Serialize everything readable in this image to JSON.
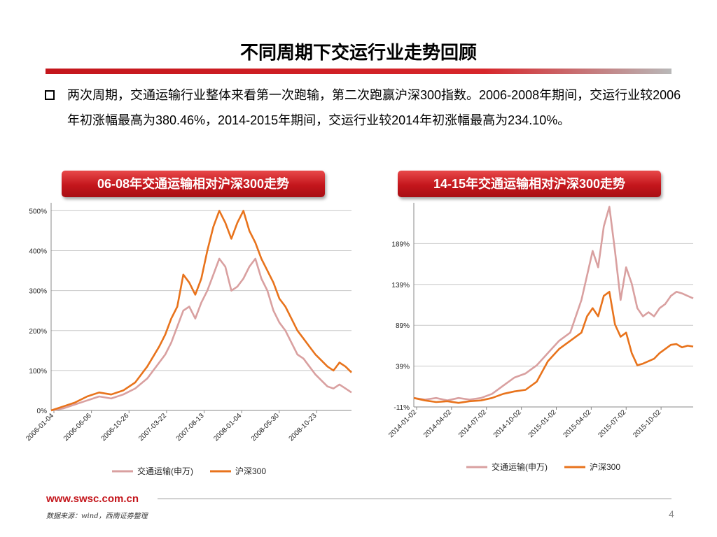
{
  "page": {
    "title": "不同周期下交运行业走势回顾",
    "description": "两次周期，交通运输行业整体来看第一次跑输，第二次跑赢沪深300指数。2006-2008年期间，交运行业较2006年初涨幅最高为380.46%，2014-2015年期间，交运行业较2014年初涨幅最高为234.10%。",
    "footer_site": "www.swsc.com.cn",
    "footer_source": "数据来源：wind，西南证券整理",
    "page_number": "4"
  },
  "colors": {
    "accent_red": "#c4161c",
    "series_transport": "#d9a0a0",
    "series_hs300": "#e8731c"
  },
  "chart_data": [
    {
      "type": "line",
      "title": "06-08年交通运输相对沪深300走势",
      "y_ticks": [
        "0%",
        "100%",
        "200%",
        "300%",
        "400%",
        "500%"
      ],
      "y_values": [
        0,
        100,
        200,
        300,
        400,
        500
      ],
      "ylim": [
        0,
        520
      ],
      "x_tick_labels": [
        "2006-01-04",
        "2006-06-06",
        "2006-10-26",
        "2007-03-22",
        "2007-08-13",
        "2008-01-04",
        "2008-05-30",
        "2008-10-23"
      ],
      "grid": true,
      "legend_position": "bottom",
      "series": [
        {
          "name": "交通运输(申万)",
          "color": "#d9a0a0",
          "x": [
            0,
            0.04,
            0.08,
            0.12,
            0.16,
            0.2,
            0.24,
            0.28,
            0.32,
            0.36,
            0.38,
            0.4,
            0.42,
            0.44,
            0.46,
            0.48,
            0.5,
            0.52,
            0.54,
            0.56,
            0.58,
            0.6,
            0.62,
            0.64,
            0.66,
            0.68,
            0.7,
            0.72,
            0.74,
            0.76,
            0.78,
            0.8,
            0.82,
            0.84,
            0.86,
            0.88,
            0.9,
            0.92,
            0.94,
            0.96,
            0.98,
            1
          ],
          "y": [
            0,
            5,
            15,
            25,
            35,
            30,
            40,
            55,
            80,
            120,
            140,
            170,
            210,
            250,
            260,
            230,
            270,
            300,
            340,
            380,
            360,
            300,
            310,
            330,
            360,
            380,
            330,
            300,
            250,
            220,
            200,
            170,
            140,
            130,
            110,
            90,
            75,
            60,
            55,
            65,
            55,
            45
          ]
        },
        {
          "name": "沪深300",
          "color": "#e8731c",
          "x": [
            0,
            0.04,
            0.08,
            0.12,
            0.16,
            0.2,
            0.24,
            0.28,
            0.32,
            0.36,
            0.38,
            0.4,
            0.42,
            0.44,
            0.46,
            0.48,
            0.5,
            0.52,
            0.54,
            0.56,
            0.58,
            0.6,
            0.62,
            0.64,
            0.66,
            0.68,
            0.7,
            0.72,
            0.74,
            0.76,
            0.78,
            0.8,
            0.82,
            0.84,
            0.86,
            0.88,
            0.9,
            0.92,
            0.94,
            0.96,
            0.98,
            1
          ],
          "y": [
            0,
            10,
            20,
            35,
            45,
            40,
            50,
            70,
            110,
            160,
            190,
            230,
            260,
            340,
            320,
            290,
            330,
            400,
            460,
            500,
            470,
            430,
            470,
            500,
            450,
            420,
            380,
            350,
            320,
            280,
            260,
            230,
            200,
            180,
            160,
            140,
            125,
            110,
            100,
            120,
            110,
            95
          ]
        }
      ]
    },
    {
      "type": "line",
      "title": "14-15年交通运输相对沪深300走势",
      "y_ticks": [
        "-11%",
        "39%",
        "89%",
        "139%",
        "189%"
      ],
      "y_values": [
        -11,
        39,
        89,
        139,
        189
      ],
      "ylim": [
        -11,
        239
      ],
      "x_tick_labels": [
        "2014-01-02",
        "2014-04-02",
        "2014-07-02",
        "2014-10-02",
        "2015-01-02",
        "2015-04-02",
        "2015-07-02",
        "2015-10-02"
      ],
      "grid": true,
      "legend_position": "bottom",
      "series": [
        {
          "name": "交通运输(申万)",
          "color": "#d9a0a0",
          "x": [
            0,
            0.04,
            0.08,
            0.12,
            0.16,
            0.2,
            0.24,
            0.28,
            0.32,
            0.36,
            0.4,
            0.44,
            0.48,
            0.52,
            0.56,
            0.6,
            0.62,
            0.64,
            0.66,
            0.68,
            0.7,
            0.72,
            0.74,
            0.76,
            0.78,
            0.8,
            0.82,
            0.84,
            0.86,
            0.88,
            0.9,
            0.92,
            0.94,
            0.96,
            0.98,
            1
          ],
          "y": [
            0,
            -2,
            0,
            -3,
            0,
            -2,
            0,
            5,
            15,
            25,
            30,
            40,
            55,
            70,
            80,
            120,
            150,
            180,
            160,
            210,
            234,
            180,
            120,
            160,
            140,
            110,
            100,
            105,
            100,
            110,
            115,
            125,
            130,
            128,
            125,
            122
          ]
        },
        {
          "name": "沪深300",
          "color": "#e8731c",
          "x": [
            0,
            0.04,
            0.08,
            0.12,
            0.16,
            0.2,
            0.24,
            0.28,
            0.32,
            0.36,
            0.4,
            0.44,
            0.48,
            0.52,
            0.56,
            0.6,
            0.62,
            0.64,
            0.66,
            0.68,
            0.7,
            0.72,
            0.74,
            0.76,
            0.78,
            0.8,
            0.82,
            0.84,
            0.86,
            0.88,
            0.9,
            0.92,
            0.94,
            0.96,
            0.98,
            1
          ],
          "y": [
            0,
            -3,
            -5,
            -4,
            -6,
            -4,
            -3,
            0,
            5,
            8,
            10,
            20,
            45,
            60,
            70,
            80,
            100,
            110,
            100,
            125,
            130,
            90,
            75,
            80,
            55,
            40,
            42,
            45,
            48,
            55,
            60,
            65,
            66,
            62,
            64,
            63
          ]
        }
      ]
    }
  ]
}
